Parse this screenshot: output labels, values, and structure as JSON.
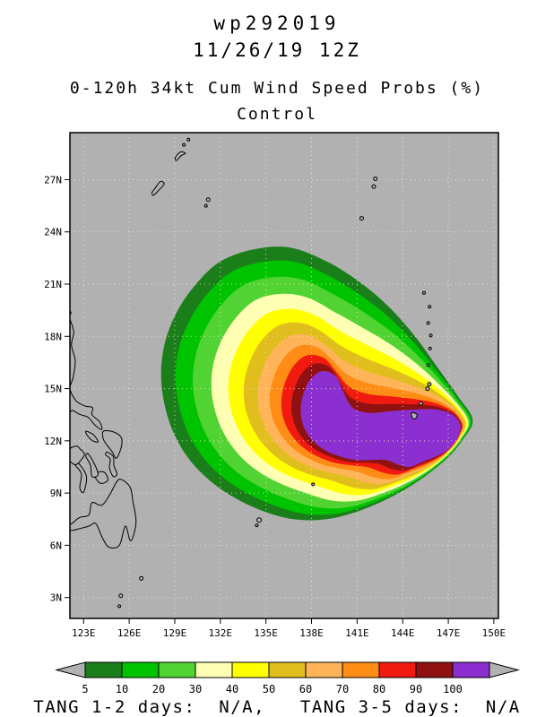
{
  "header": {
    "storm_id": "wp292019",
    "datetime": "11/26/19 12Z",
    "product_title": "0-120h 34kt Cum Wind Speed Probs (%)",
    "model": "Control"
  },
  "footer": {
    "text": "TANG 1-2 days:  N/A,   TANG 3-5 days:  N/A"
  },
  "colorbar": {
    "labels": [
      "5",
      "10",
      "20",
      "30",
      "40",
      "50",
      "60",
      "70",
      "80",
      "90",
      "100"
    ],
    "arrow_color": "#b1b1b1"
  },
  "chart_data": {
    "type": "heatmap",
    "subtype": "filled_contour_probability_map",
    "title": "0-120h 34kt Cum Wind Speed Probs (%)",
    "subtitle": "Control",
    "units": "%",
    "levels": [
      5,
      10,
      20,
      30,
      40,
      50,
      60,
      70,
      80,
      90,
      100
    ],
    "colors": [
      "#1a7e1a",
      "#00c300",
      "#52d334",
      "#ffffb4",
      "#ffff00",
      "#e0be1e",
      "#ffb45a",
      "#ff8c14",
      "#f01a0f",
      "#8f1111",
      "#8c2fd0"
    ],
    "map": {
      "background": "#b1b1b1",
      "lon_range": [
        122.1,
        150.3
      ],
      "lat_range": [
        1.8,
        29.7
      ],
      "lon_ticks": [
        123,
        126,
        129,
        132,
        135,
        138,
        141,
        144,
        147,
        150
      ],
      "lon_labels": [
        "123E",
        "126E",
        "129E",
        "132E",
        "135E",
        "138E",
        "141E",
        "144E",
        "147E",
        "150E"
      ],
      "lat_ticks": [
        27,
        24,
        21,
        18,
        15,
        12,
        9,
        6,
        3
      ],
      "lat_labels": [
        "27N",
        "24N",
        "21N",
        "18N",
        "15N",
        "12N",
        "9N",
        "6N",
        "3N"
      ],
      "grid_style": "dotted",
      "grid_color": "#f0f0be"
    },
    "contours": {
      "ring_t": [
        0,
        0.1,
        0.22,
        0.35,
        0.47,
        0.58,
        0.68,
        0.77,
        0.855,
        0.93,
        1.0
      ],
      "outer": [
        [
          148.6,
          13.2
        ],
        [
          147.6,
          14.6
        ],
        [
          146.3,
          16.2
        ],
        [
          144.9,
          17.9
        ],
        [
          143.2,
          19.6
        ],
        [
          141.2,
          21.1
        ],
        [
          139.0,
          22.3
        ],
        [
          136.6,
          23.1
        ],
        [
          134.2,
          23.0
        ],
        [
          132.0,
          22.3
        ],
        [
          130.4,
          21.0
        ],
        [
          129.2,
          19.5
        ],
        [
          128.4,
          17.8
        ],
        [
          128.1,
          16.0
        ],
        [
          128.3,
          14.2
        ],
        [
          128.9,
          12.5
        ],
        [
          129.9,
          11.0
        ],
        [
          131.2,
          9.8
        ],
        [
          132.8,
          8.8
        ],
        [
          134.7,
          8.0
        ],
        [
          136.8,
          7.5
        ],
        [
          139.0,
          7.5
        ],
        [
          141.2,
          8.0
        ],
        [
          143.3,
          8.8
        ],
        [
          145.2,
          9.8
        ],
        [
          146.8,
          10.9
        ],
        [
          147.9,
          12.0
        ]
      ],
      "inner": [
        [
          147.8,
          12.9
        ],
        [
          147.3,
          13.5
        ],
        [
          146.2,
          13.8
        ],
        [
          144.8,
          13.8
        ],
        [
          143.2,
          13.7
        ],
        [
          141.8,
          13.6
        ],
        [
          140.7,
          13.9
        ],
        [
          140.1,
          14.8
        ],
        [
          139.6,
          15.7
        ],
        [
          138.7,
          16.0
        ],
        [
          137.9,
          15.5
        ],
        [
          137.4,
          14.5
        ],
        [
          137.3,
          13.5
        ],
        [
          137.6,
          12.6
        ],
        [
          138.2,
          11.9
        ],
        [
          139.0,
          11.4
        ],
        [
          139.9,
          11.1
        ],
        [
          140.9,
          10.9
        ],
        [
          141.9,
          10.9
        ],
        [
          142.9,
          10.9
        ],
        [
          143.8,
          10.6
        ],
        [
          144.5,
          10.5
        ],
        [
          145.3,
          10.8
        ],
        [
          146.2,
          11.1
        ],
        [
          147.0,
          11.5
        ],
        [
          147.5,
          12.0
        ],
        [
          147.7,
          12.4
        ]
      ]
    },
    "coastlines": [
      [
        [
          121.9,
          18.8
        ],
        [
          122.35,
          18.3
        ],
        [
          122.2,
          17.5
        ],
        [
          122.45,
          16.6
        ],
        [
          122.3,
          15.6
        ],
        [
          122.1,
          15.0
        ],
        [
          122.5,
          14.3
        ],
        [
          123.1,
          14.0
        ],
        [
          123.6,
          13.9
        ],
        [
          123.55,
          13.5
        ],
        [
          124.05,
          13.1
        ],
        [
          124.2,
          12.65
        ],
        [
          123.75,
          12.9
        ],
        [
          123.3,
          13.35
        ],
        [
          122.8,
          13.5
        ],
        [
          122.3,
          13.75
        ],
        [
          121.9,
          14.0
        ]
      ],
      [
        [
          124.3,
          12.55
        ],
        [
          125.0,
          12.5
        ],
        [
          125.5,
          12.15
        ],
        [
          125.45,
          11.55
        ],
        [
          125.15,
          11.0
        ],
        [
          124.9,
          11.35
        ],
        [
          124.55,
          11.75
        ],
        [
          124.3,
          12.1
        ]
      ],
      [
        [
          124.55,
          11.35
        ],
        [
          124.95,
          11.1
        ],
        [
          125.0,
          10.55
        ],
        [
          125.2,
          10.1
        ],
        [
          124.95,
          9.95
        ],
        [
          124.7,
          10.45
        ],
        [
          124.75,
          10.95
        ],
        [
          124.45,
          11.2
        ]
      ],
      [
        [
          123.85,
          10.15
        ],
        [
          124.35,
          10.2
        ],
        [
          124.6,
          9.75
        ],
        [
          124.15,
          9.55
        ],
        [
          123.8,
          9.85
        ]
      ],
      [
        [
          123.3,
          11.25
        ],
        [
          123.75,
          10.6
        ],
        [
          123.95,
          10.05
        ],
        [
          123.55,
          9.95
        ],
        [
          123.45,
          10.6
        ],
        [
          123.15,
          11.1
        ]
      ],
      [
        [
          122.4,
          10.95
        ],
        [
          122.95,
          10.4
        ],
        [
          123.2,
          9.85
        ],
        [
          123.0,
          9.05
        ],
        [
          122.75,
          9.3
        ],
        [
          122.85,
          10.1
        ],
        [
          122.45,
          10.6
        ],
        [
          122.25,
          10.85
        ]
      ],
      [
        [
          121.95,
          11.45
        ],
        [
          122.5,
          11.7
        ],
        [
          122.75,
          11.55
        ],
        [
          123.05,
          11.2
        ],
        [
          122.55,
          10.65
        ],
        [
          122.2,
          10.75
        ],
        [
          121.95,
          11.0
        ]
      ],
      [
        [
          123.15,
          12.55
        ],
        [
          123.65,
          12.35
        ],
        [
          123.95,
          11.95
        ],
        [
          123.6,
          12.0
        ],
        [
          123.25,
          12.3
        ]
      ],
      [
        [
          125.4,
          9.8
        ],
        [
          126.05,
          9.35
        ],
        [
          126.25,
          8.5
        ],
        [
          126.45,
          7.3
        ],
        [
          126.1,
          6.25
        ],
        [
          125.75,
          7.1
        ],
        [
          125.35,
          6.0
        ],
        [
          124.65,
          5.9
        ],
        [
          124.2,
          6.5
        ],
        [
          123.8,
          7.25
        ],
        [
          123.35,
          7.1
        ],
        [
          122.7,
          6.95
        ],
        [
          122.15,
          6.85
        ],
        [
          121.9,
          7.0
        ],
        [
          122.3,
          7.3
        ],
        [
          122.75,
          7.6
        ],
        [
          123.35,
          7.75
        ],
        [
          123.55,
          8.45
        ],
        [
          124.2,
          8.3
        ],
        [
          124.75,
          8.95
        ],
        [
          125.05,
          9.45
        ]
      ],
      [
        [
          127.6,
          26.1
        ],
        [
          127.95,
          26.4
        ],
        [
          128.3,
          26.75
        ],
        [
          128.05,
          26.9
        ],
        [
          127.7,
          26.5
        ],
        [
          127.5,
          26.25
        ]
      ],
      [
        [
          129.1,
          28.1
        ],
        [
          129.45,
          28.4
        ],
        [
          129.7,
          28.5
        ],
        [
          129.4,
          28.6
        ],
        [
          129.05,
          28.3
        ]
      ],
      [
        [
          144.62,
          13.62
        ],
        [
          144.95,
          13.5
        ],
        [
          144.78,
          13.24
        ],
        [
          144.58,
          13.42
        ]
      ]
    ],
    "islands": [
      [
        131.2,
        25.85,
        2
      ],
      [
        131.05,
        25.5,
        1.5
      ],
      [
        142.2,
        27.05,
        2
      ],
      [
        142.1,
        26.6,
        2
      ],
      [
        141.3,
        24.78,
        2
      ],
      [
        145.2,
        14.15,
        2
      ],
      [
        145.63,
        15.0,
        2
      ],
      [
        145.75,
        15.25,
        2
      ],
      [
        145.68,
        16.35,
        1.5
      ],
      [
        145.8,
        17.3,
        1.5
      ],
      [
        145.85,
        18.05,
        1.5
      ],
      [
        145.68,
        18.77,
        1.5
      ],
      [
        145.77,
        19.7,
        1.5
      ],
      [
        145.4,
        20.5,
        1.5
      ],
      [
        138.1,
        9.5,
        1.5
      ],
      [
        134.55,
        7.45,
        2.5
      ],
      [
        134.4,
        7.15,
        1.5
      ],
      [
        126.8,
        4.1,
        2
      ],
      [
        125.45,
        3.1,
        2
      ],
      [
        125.35,
        2.5,
        1.5
      ],
      [
        129.9,
        29.3,
        1.5
      ],
      [
        129.6,
        29.0,
        1.5
      ],
      [
        122.05,
        19.35,
        2
      ]
    ]
  }
}
